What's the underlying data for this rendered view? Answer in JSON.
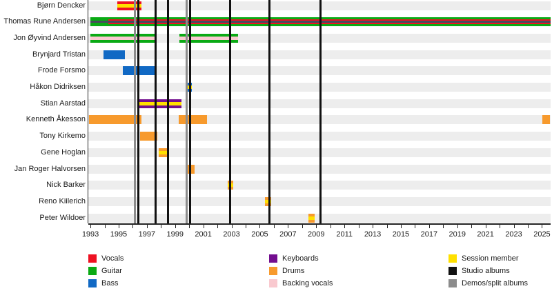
{
  "palette": {
    "vocals": "#ee1122",
    "guitar": "#0aaa14",
    "bass": "#1169c4",
    "keyboards": "#730e8f",
    "drums": "#f79a2d",
    "backing": "#f9c9cf",
    "session": "#ffe000",
    "studio": "#111111",
    "demos": "#8c8c8c",
    "dark_center_stripe": "#474c5c",
    "row_band": "#ededed"
  },
  "chart_data": {
    "type": "bar",
    "subtype": "band-members-gantt-timeline",
    "x_axis": {
      "min": 1992.85,
      "max": 2025.6,
      "tick_labels": [
        "1993",
        "1995",
        "1997",
        "1999",
        "2001",
        "2003",
        "2005",
        "2007",
        "2009",
        "2011",
        "2013",
        "2015",
        "2017",
        "2019",
        "2021",
        "2023",
        "2025"
      ],
      "labeled_tick_years": [
        1993,
        1995,
        1997,
        1999,
        2001,
        2003,
        2005,
        2007,
        2009,
        2011,
        2013,
        2015,
        2017,
        2019,
        2021,
        2023,
        2025
      ],
      "minor_tick_years": [
        1994,
        1996,
        1998,
        2000,
        2002,
        2004,
        2006,
        2008,
        2010,
        2012,
        2014,
        2016,
        2018,
        2020,
        2022,
        2024
      ],
      "grid": false
    },
    "members": [
      {
        "label": "Bjørn Dencker",
        "bars": [
          {
            "from": 1994.9,
            "to": 1996.63,
            "color": "vocals"
          },
          {
            "from": 1994.9,
            "to": 1996.63,
            "color": "session",
            "h": 5
          }
        ]
      },
      {
        "label": "Thomas Rune Andersen",
        "bars": [
          {
            "from": 1993.0,
            "to": 2025.6,
            "color": "guitar"
          },
          {
            "from": 1994.25,
            "to": 2025.6,
            "color": "vocals",
            "h": 7
          },
          {
            "from": 1993.0,
            "to": 2025.6,
            "color": "dark_center_stripe",
            "h": 3
          }
        ]
      },
      {
        "label": "Jon Øyvind Andersen",
        "bars": [
          {
            "from": 1993.0,
            "to": 1997.61,
            "color": "guitar"
          },
          {
            "from": 1993.0,
            "to": 1997.61,
            "color": "backing",
            "h": 5
          },
          {
            "from": 1999.32,
            "to": 2003.48,
            "color": "guitar"
          },
          {
            "from": 1999.32,
            "to": 2003.48,
            "color": "backing",
            "h": 5
          }
        ]
      },
      {
        "label": "Brynjard Tristan",
        "bars": [
          {
            "from": 1993.94,
            "to": 1995.46,
            "color": "bass"
          }
        ]
      },
      {
        "label": "Frode Forsmo",
        "bars": [
          {
            "from": 1995.31,
            "to": 1997.66,
            "color": "bass"
          }
        ]
      },
      {
        "label": "Håkon Didriksen",
        "bars": [
          {
            "from": 1999.76,
            "to": 2000.2,
            "color": "bass"
          },
          {
            "from": 1999.76,
            "to": 2000.2,
            "color": "session",
            "h": 5
          }
        ]
      },
      {
        "label": "Stian Aarstad",
        "bars": [
          {
            "from": 1996.44,
            "to": 1999.47,
            "color": "keyboards"
          },
          {
            "from": 1996.44,
            "to": 1999.47,
            "color": "session",
            "h": 5
          }
        ]
      },
      {
        "label": "Kenneth Åkesson",
        "bars": [
          {
            "from": 1992.9,
            "to": 1996.63,
            "color": "drums"
          },
          {
            "from": 1999.27,
            "to": 2001.28,
            "color": "drums"
          },
          {
            "from": 2025.05,
            "to": 2025.54,
            "color": "drums"
          }
        ]
      },
      {
        "label": "Tony Kirkemo",
        "bars": [
          {
            "from": 1996.54,
            "to": 1997.76,
            "color": "drums"
          }
        ]
      },
      {
        "label": "Gene Hoglan",
        "bars": [
          {
            "from": 1997.86,
            "to": 1998.54,
            "color": "drums"
          },
          {
            "from": 1997.86,
            "to": 1998.54,
            "color": "session",
            "h": 5
          }
        ]
      },
      {
        "label": "Jan Roger Halvorsen",
        "bars": [
          {
            "from": 1999.81,
            "to": 2000.4,
            "color": "drums"
          }
        ]
      },
      {
        "label": "Nick Barker",
        "bars": [
          {
            "from": 2002.75,
            "to": 2003.14,
            "color": "drums"
          },
          {
            "from": 2002.75,
            "to": 2003.14,
            "color": "session",
            "h": 5
          }
        ]
      },
      {
        "label": "Reno Kiilerich",
        "bars": [
          {
            "from": 2005.39,
            "to": 2005.83,
            "color": "drums"
          },
          {
            "from": 2005.39,
            "to": 2005.83,
            "color": "session",
            "h": 5
          }
        ]
      },
      {
        "label": "Peter Wildoer",
        "bars": [
          {
            "from": 2008.47,
            "to": 2008.91,
            "color": "drums"
          },
          {
            "from": 2008.47,
            "to": 2008.91,
            "color": "session",
            "h": 5
          }
        ]
      }
    ],
    "release_lines": {
      "studio_albums": [
        1996.39,
        1997.61,
        1998.52,
        2000.06,
        2002.89,
        2005.71,
        2009.3
      ],
      "demos_splits": [
        1996.15,
        1999.8
      ]
    },
    "legend": {
      "columns": [
        {
          "items": [
            {
              "label": "Vocals",
              "color": "vocals"
            },
            {
              "label": "Guitar",
              "color": "guitar"
            },
            {
              "label": "Bass",
              "color": "bass"
            }
          ]
        },
        {
          "items": [
            {
              "label": "Keyboards",
              "color": "keyboards"
            },
            {
              "label": "Drums",
              "color": "drums"
            },
            {
              "label": "Backing vocals",
              "color": "backing"
            }
          ]
        },
        {
          "items": [
            {
              "label": "Session member",
              "color": "session"
            },
            {
              "label": "Studio albums",
              "color": "studio"
            },
            {
              "label": "Demos/split albums",
              "color": "demos"
            }
          ]
        }
      ]
    }
  },
  "layout_note": ""
}
